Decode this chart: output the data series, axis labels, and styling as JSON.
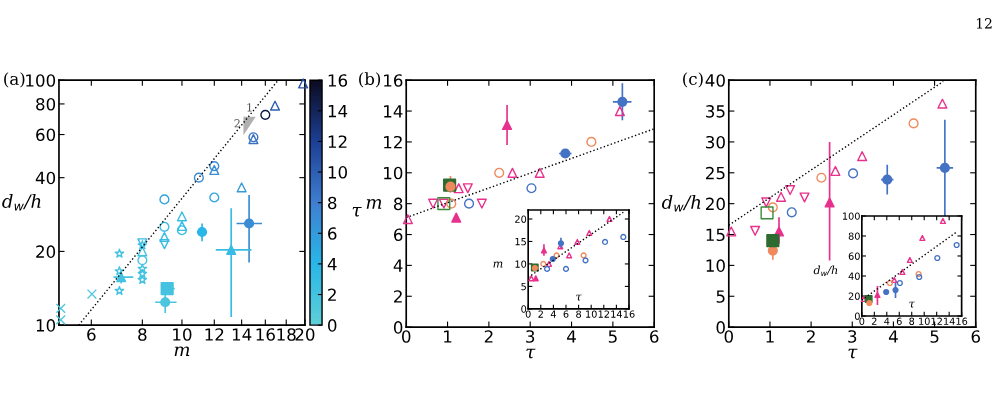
{
  "chart_data": [
    {
      "type": "scatter",
      "title": "(a)",
      "xlabel": "m",
      "ylabel": "d$_{w}$/h",
      "clabel": "τ",
      "log": "xy",
      "xlim": [
        5,
        20
      ],
      "xticks": [
        6,
        8,
        10,
        12,
        14,
        16,
        18,
        20
      ],
      "ylim": [
        10,
        100
      ],
      "yticks": [
        10,
        20,
        40,
        60,
        80,
        100
      ],
      "clim": [
        0,
        16
      ],
      "cticks": [
        0,
        2,
        4,
        6,
        8,
        10,
        12,
        14,
        16
      ],
      "annotations": [
        "12",
        "1",
        "2"
      ],
      "series": [
        {
          "marker": "cross",
          "color": "#51c8dc",
          "x": [
            5.05,
            5.05,
            6.02
          ],
          "values": [
            11.7,
            10.5,
            13.4
          ]
        },
        {
          "marker": "star",
          "color": "#44c2e0",
          "x": [
            7.03,
            7.03,
            7.03,
            8,
            8,
            8,
            8
          ],
          "values": [
            19.6,
            16.6,
            13.8,
            21.2,
            17.0,
            15.3,
            16.2
          ]
        },
        {
          "marker": "circle",
          "colors": [
            "#44c2e0",
            "#2fa5e0",
            "#37bce4",
            "#37bce4",
            "#3a8cd4",
            "#3a8cd4",
            "#2fa5e0",
            "#3871c2",
            "#0f1a40"
          ],
          "x": [
            8,
            9.06,
            9.06,
            10,
            11,
            12,
            12,
            14.96,
            16
          ],
          "values": [
            18.4,
            32.6,
            25.2,
            24.4,
            40.0,
            44.6,
            33.2,
            58.5,
            72.2
          ]
        },
        {
          "marker": "triangle",
          "colors": [
            "#44c2e0",
            "#37bce4",
            "#37bce4",
            "#37bce4",
            "#3a8cd4",
            "#3599d9",
            "#3871c2",
            "#2e60b2",
            "#2550a3"
          ],
          "x": [
            8,
            9.06,
            10,
            10,
            12,
            14,
            14.96,
            16.9,
            19.8
          ],
          "values": [
            20.0,
            22.9,
            27.8,
            25.4,
            43.0,
            36.5,
            57.5,
            78.7,
            97.0
          ]
        },
        {
          "marker": "triangle_down",
          "color": "#37bce4",
          "x": [
            8,
            9.06
          ],
          "values": [
            21.6,
            21.4
          ]
        },
        {
          "marker": "circle",
          "colors": [
            "#4cc5de",
            "#29b6e8",
            "#3a8cd4"
          ],
          "x": [
            9.1,
            11.2,
            14.6
          ],
          "values": [
            12.4,
            24.0,
            26.0
          ],
          "errors": [
            [
              11.2,
              13.6
            ],
            [
              22.0,
              26.0
            ],
            [
              18.0,
              34.0
            ]
          ],
          "xerrors": [
            [
              8.6,
              9.7
            ],
            null,
            [
              13.6,
              15.7
            ]
          ]
        },
        {
          "marker": "triangle",
          "colors": [
            "#44c2e0",
            "#37bce4"
          ],
          "x": [
            7.1,
            13.2
          ],
          "values": [
            15.7,
            20.3
          ],
          "errors": [
            [
              14.8,
              16.8
            ],
            [
              10.8,
              30.0
            ]
          ],
          "xerrors": [
            [
              6.8,
              7.6
            ],
            [
              12.1,
              14.8
            ]
          ]
        },
        {
          "marker": "square",
          "color": "#44c2e0",
          "x": [
            9.2
          ],
          "values": [
            14.1
          ],
          "errors": [
            [
              13.6,
              14.6
            ]
          ],
          "xerrors": [
            [
              8.9,
              9.6
            ]
          ]
        },
        {
          "type": "line",
          "line_style": "dotted",
          "color": "#000000",
          "x": [
            5.59,
            17.2
          ],
          "values": [
            10,
            100
          ]
        }
      ]
    },
    {
      "type": "scatter",
      "title": "(b)",
      "xlabel": "τ",
      "ylabel": "m",
      "xlim": [
        0,
        6
      ],
      "xticks": [
        0,
        1,
        2,
        3,
        4,
        5,
        6
      ],
      "ylim": [
        0,
        16
      ],
      "yticks": [
        0,
        2,
        4,
        6,
        8,
        10,
        12,
        14,
        16
      ],
      "series": [
        {
          "marker": "triangle",
          "color": "#e8318c",
          "x": [
            0.04,
            1.27,
            2.57,
            3.23,
            5.17
          ],
          "values": [
            7.0,
            9.0,
            10.0,
            10.0,
            14.0
          ]
        },
        {
          "marker": "triangle_down",
          "color": "#e8318c",
          "x": [
            0.65,
            0.91,
            1.49,
            1.83
          ],
          "values": [
            8.0,
            8.0,
            9.0,
            8.0
          ]
        },
        {
          "marker": "triangle",
          "color": "#e8318c",
          "x": [
            1.21,
            2.44
          ],
          "values": [
            7.1,
            13.1
          ],
          "errors": [
            null,
            [
              11.8,
              14.4
            ]
          ]
        },
        {
          "marker": "circle",
          "color": "#f08a5d",
          "x": [
            1.09,
            2.25,
            4.48
          ],
          "values": [
            8.0,
            10.0,
            12.0
          ]
        },
        {
          "marker": "square",
          "color": "#2e6b30",
          "x": [
            1.05
          ],
          "values": [
            9.2
          ],
          "errors": [
            null
          ]
        },
        {
          "marker": "circle",
          "color": "#f08a5d",
          "x": [
            1.07
          ],
          "values": [
            9.1
          ],
          "errors": [
            [
              8.7,
              9.8
            ]
          ]
        },
        {
          "marker": "square",
          "color": "#3a8a3a",
          "x": [
            0.91
          ],
          "values": [
            8.0
          ]
        },
        {
          "marker": "circle",
          "color": "#4472c4",
          "x": [
            1.52,
            3.03
          ],
          "values": [
            8.0,
            9.0
          ]
        },
        {
          "marker": "circle",
          "color": "#4472c4",
          "x": [
            3.85,
            5.23
          ],
          "values": [
            11.25,
            14.6
          ],
          "errors": [
            null,
            [
              13.4,
              15.8
            ]
          ],
          "xerrors": [
            [
              3.7,
              4.0
            ],
            [
              5.0,
              5.45
            ]
          ]
        },
        {
          "type": "line",
          "line_style": "dotted",
          "color": "#000000",
          "x": [
            0,
            6
          ],
          "values": [
            7.1,
            12.85
          ]
        }
      ]
    },
    {
      "type": "scatter",
      "xlabel": "τ",
      "ylabel": "m",
      "xlim": [
        0,
        16
      ],
      "xticks": [
        0,
        2,
        4,
        6,
        8,
        10,
        12,
        14,
        16
      ],
      "ylim": [
        0,
        22
      ],
      "yticks": [
        0,
        5,
        10,
        15,
        20
      ],
      "series": [
        {
          "marker": "triangle",
          "color": "#e8318c",
          "x": [
            0.5,
            3.3,
            5.1,
            6.5,
            7.8,
            9.7,
            12.9
          ],
          "values": [
            6.8,
            10.0,
            13.9,
            11.9,
            14.9,
            16.9,
            20.0
          ]
        },
        {
          "marker": "triangle",
          "color": "#e8318c",
          "x": [
            1.2,
            2.5
          ],
          "values": [
            6.8,
            13.0
          ],
          "errors": [
            null,
            [
              11.8,
              14.4
            ]
          ]
        },
        {
          "marker": "circle",
          "color": "#f08a5d",
          "x": [
            2.4,
            4.5,
            8.8
          ],
          "values": [
            10.0,
            11.9,
            11.9
          ]
        },
        {
          "marker": "circle",
          "color": "#4472c4",
          "x": [
            3.0,
            6.0,
            9.1,
            12.2,
            15.1
          ],
          "values": [
            8.9,
            8.9,
            10.8,
            14.9,
            16.0
          ]
        },
        {
          "marker": "square",
          "color": "#2e6b30",
          "x": [
            1.05
          ],
          "values": [
            9.2
          ],
          "errors": [
            null
          ]
        },
        {
          "marker": "circle",
          "color": "#f08a5d",
          "x": [
            1.07
          ],
          "values": [
            9.1
          ],
          "errors": [
            null
          ]
        },
        {
          "marker": "circle",
          "color": "#4472c4",
          "x": [
            3.9,
            5.2
          ],
          "values": [
            11.1,
            14.6
          ],
          "errors": [
            null,
            [
              13.4,
              15.8
            ]
          ]
        },
        {
          "type": "line",
          "line_style": "dotted",
          "color": "#000000",
          "x": [
            0,
            15.1
          ],
          "values": [
            7.0,
            21.5
          ]
        }
      ]
    },
    {
      "type": "scatter",
      "title": "(c)",
      "xlabel": "τ",
      "ylabel": "d$_{w}$/h",
      "xlim": [
        0,
        6
      ],
      "xticks": [
        0,
        1,
        2,
        3,
        4,
        5,
        6
      ],
      "ylim": [
        0,
        40
      ],
      "yticks": [
        0,
        5,
        10,
        15,
        20,
        25,
        30,
        35,
        40
      ],
      "series": [
        {
          "marker": "triangle",
          "color": "#e8318c",
          "x": [
            0.06,
            1.27,
            2.59,
            3.24,
            5.19
          ],
          "values": [
            15.5,
            21.1,
            25.3,
            27.7,
            36.2
          ]
        },
        {
          "marker": "triangle_down",
          "color": "#e8318c",
          "x": [
            0.64,
            0.91,
            1.49,
            1.84
          ],
          "values": [
            15.6,
            20.2,
            22.2,
            21.0
          ]
        },
        {
          "marker": "triangle",
          "color": "#e8318c",
          "x": [
            1.22,
            2.45
          ],
          "values": [
            15.5,
            20.2
          ],
          "errors": [
            [
              13.5,
              17.8
            ],
            [
              10.8,
              30.0
            ]
          ]
        },
        {
          "marker": "circle",
          "color": "#f08a5d",
          "x": [
            1.07,
            2.25,
            4.49
          ],
          "values": [
            19.4,
            24.2,
            33.0
          ]
        },
        {
          "marker": "circle",
          "color": "#f08a5d",
          "x": [
            1.07
          ],
          "values": [
            12.4
          ],
          "errors": [
            [
              10.9,
              12.4
            ]
          ]
        },
        {
          "marker": "square",
          "color": "#3a8a3a",
          "x": [
            0.93
          ],
          "values": [
            18.5
          ]
        },
        {
          "marker": "square",
          "color": "#2e6b30",
          "x": [
            1.07
          ],
          "values": [
            14.0
          ],
          "errors": [
            null
          ]
        },
        {
          "marker": "circle",
          "color": "#4472c4",
          "x": [
            1.53,
            3.02
          ],
          "values": [
            18.6,
            24.9
          ]
        },
        {
          "marker": "circle",
          "color": "#4472c4",
          "x": [
            3.85,
            5.25
          ],
          "values": [
            23.9,
            25.8
          ],
          "errors": [
            [
              21.5,
              26.3
            ],
            [
              18.0,
              33.6
            ]
          ],
          "xerrors": [
            [
              3.7,
              4.0
            ],
            [
              5.05,
              5.45
            ]
          ]
        },
        {
          "type": "line",
          "line_style": "dotted",
          "color": "#000000",
          "x": [
            0,
            5.21
          ],
          "values": [
            16.5,
            39.8
          ]
        }
      ]
    },
    {
      "type": "scatter",
      "xlabel": "τ",
      "ylabel": "d$_{w}$/h",
      "xlim": [
        0,
        16
      ],
      "xticks": [
        0,
        2,
        4,
        6,
        8,
        10,
        12,
        14,
        16
      ],
      "ylim": [
        0,
        100
      ],
      "yticks": [
        0,
        20,
        40,
        60,
        80,
        100
      ],
      "series": [
        {
          "marker": "triangle",
          "color": "#e8318c",
          "x": [
            0.3,
            5.2,
            6.5,
            7.7,
            9.7,
            13.0
          ],
          "values": [
            17,
            36,
            44,
            56,
            78,
            95
          ]
        },
        {
          "marker": "triangle",
          "color": "#e8318c",
          "x": [
            2.5
          ],
          "values": [
            21
          ],
          "errors": [
            [
              11,
              30
            ]
          ]
        },
        {
          "marker": "circle",
          "color": "#f08a5d",
          "x": [
            4.5,
            9.1
          ],
          "values": [
            33,
            42
          ]
        },
        {
          "marker": "circle",
          "color": "#4472c4",
          "x": [
            6.1,
            9.2,
            12.1,
            15.2
          ],
          "values": [
            33,
            39,
            58,
            71
          ]
        },
        {
          "marker": "circle",
          "color": "#4472c4",
          "x": [
            3.9,
            5.4
          ],
          "values": [
            24,
            26
          ],
          "errors": [
            null,
            [
              18,
              34
            ]
          ]
        },
        {
          "marker": "square",
          "color": "#2e6b30",
          "x": [
            1.1
          ],
          "values": [
            17
          ],
          "errors": [
            null
          ]
        },
        {
          "marker": "circle",
          "color": "#f08a5d",
          "x": [
            1.2
          ],
          "values": [
            13
          ],
          "errors": [
            null
          ]
        },
        {
          "type": "line",
          "line_style": "dotted",
          "color": "#000000",
          "x": [
            0,
            15.2
          ],
          "values": [
            16,
            84
          ]
        }
      ]
    }
  ]
}
